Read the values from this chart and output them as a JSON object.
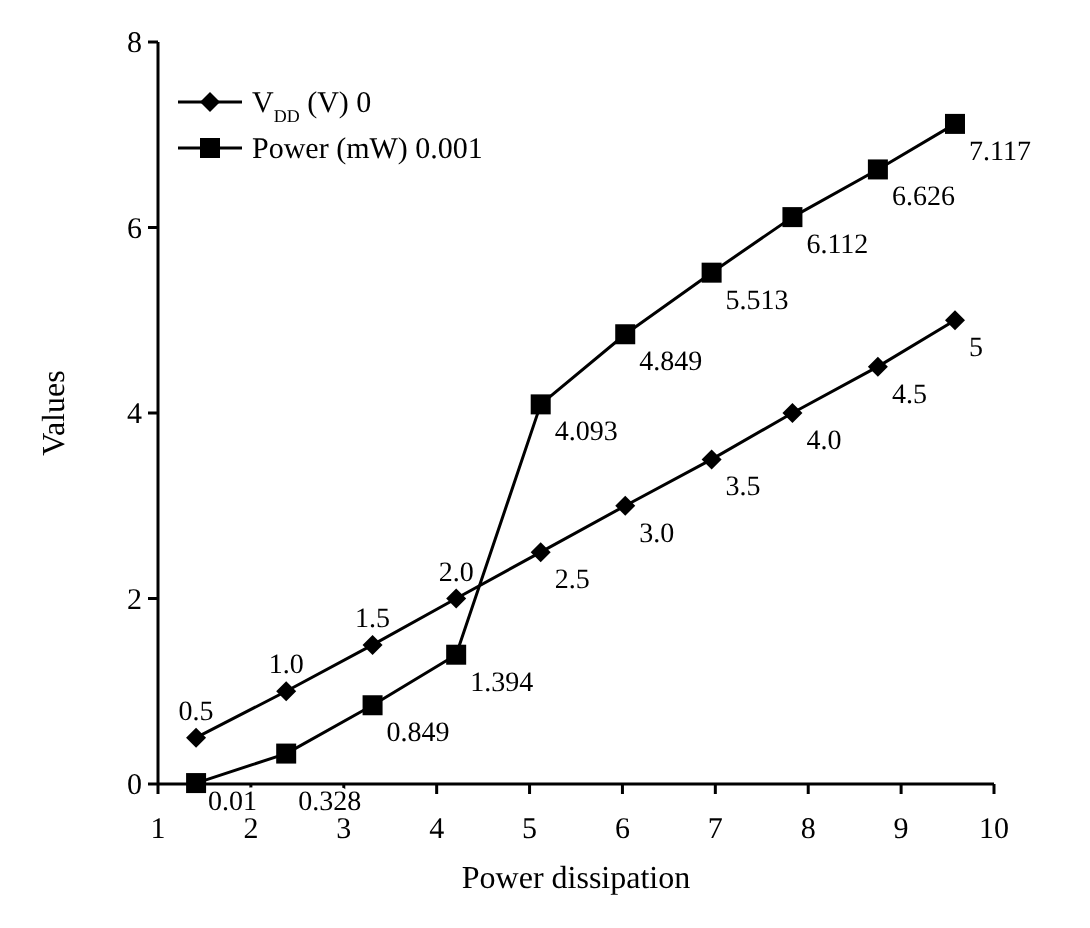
{
  "chart_data": {
    "type": "line",
    "xlabel": "Power dissipation",
    "ylabel": "Values",
    "x": [
      1.41,
      2.38,
      3.31,
      4.21,
      5.12,
      6.03,
      6.96,
      7.83,
      8.75,
      9.58
    ],
    "xlim": [
      1,
      10
    ],
    "xticks": [
      1,
      2,
      3,
      4,
      5,
      6,
      7,
      8,
      9,
      10
    ],
    "ylim": [
      0,
      8
    ],
    "yticks": [
      0,
      2,
      4,
      6,
      8
    ],
    "legend": "top left",
    "grid": false,
    "line_style": "solid",
    "series": [
      {
        "name": "V$_{DD}$ (V) 0",
        "color": "#000000",
        "marker": "diamond",
        "values": [
          0.5,
          1.0,
          1.5,
          2.0,
          2.5,
          3.0,
          3.5,
          4.0,
          4.5,
          5
        ],
        "value_labels": [
          "0.5",
          "1.0",
          "1.5",
          "2.0",
          "2.5",
          "3.0",
          "3.5",
          "4.0",
          "4.5",
          "5"
        ]
      },
      {
        "name": "Power (mW) 0.001",
        "color": "#000000",
        "marker": "square",
        "values": [
          0.01,
          0.328,
          0.849,
          1.394,
          4.093,
          4.849,
          5.513,
          6.112,
          6.626,
          7.117
        ],
        "value_labels": [
          "0.01",
          "0.328",
          "0.849",
          "1.394",
          "4.093",
          "4.849",
          "5.513",
          "6.112",
          "6.626",
          "7.117"
        ]
      }
    ]
  }
}
